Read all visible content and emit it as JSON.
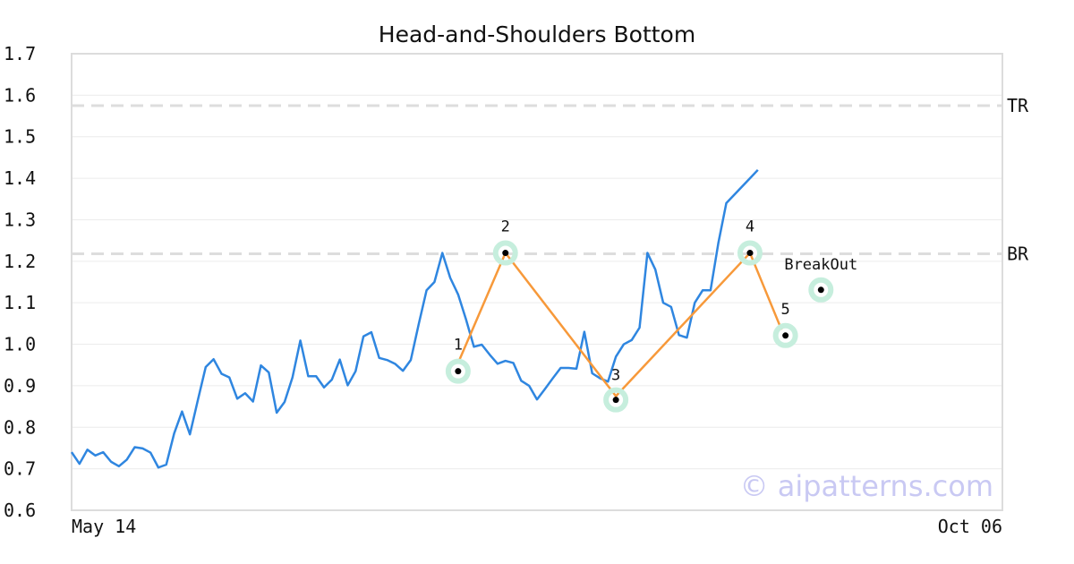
{
  "chart_data": {
    "type": "line",
    "title": "Head-and-Shoulders Bottom",
    "xlabel": "",
    "ylabel": "",
    "ylim": [
      0.6,
      1.7
    ],
    "yticks": [
      "0.6",
      "0.7",
      "0.8",
      "0.9",
      "1.0",
      "1.1",
      "1.2",
      "1.3",
      "1.4",
      "1.5",
      "1.6",
      "1.7"
    ],
    "xlim": [
      0,
      118
    ],
    "xtick_labels": [
      {
        "x": 0,
        "label": "May 14"
      },
      {
        "x": 118,
        "label": "Oct 06"
      }
    ],
    "grid": true,
    "series": [
      {
        "color": "#2f86e0",
        "y": [
          0.74,
          0.712,
          0.746,
          0.732,
          0.74,
          0.717,
          0.706,
          0.722,
          0.752,
          0.749,
          0.739,
          0.703,
          0.71,
          0.785,
          0.838,
          0.783,
          0.865,
          0.945,
          0.964,
          0.929,
          0.92,
          0.869,
          0.882,
          0.862,
          0.949,
          0.932,
          0.835,
          0.861,
          0.92,
          1.009,
          0.923,
          0.923,
          0.896,
          0.915,
          0.963,
          0.901,
          0.935,
          1.019,
          1.029,
          0.967,
          0.962,
          0.953,
          0.936,
          0.962,
          1.048,
          1.13,
          1.15,
          1.22,
          1.16,
          1.12,
          1.06,
          0.994,
          0.999,
          0.975,
          0.953,
          0.96,
          0.955,
          0.912,
          0.9,
          0.867,
          0.892,
          0.918,
          0.943,
          0.943,
          0.941,
          1.03,
          0.93,
          0.918,
          0.91,
          0.97,
          1.0,
          1.01,
          1.04,
          1.22,
          1.18,
          1.1,
          1.09,
          1.022,
          1.016,
          1.1,
          1.13,
          1.13,
          1.245,
          1.34,
          1.36,
          1.38,
          1.4,
          1.42
        ]
      },
      {
        "color": "#f7993a",
        "points": [
          [
            49,
            0.955
          ],
          [
            55,
            1.22
          ],
          [
            69,
            0.875
          ],
          [
            86,
            1.22
          ],
          [
            90,
            1.035
          ]
        ]
      }
    ],
    "pattern_points": [
      {
        "label": "1",
        "x": 49,
        "y": 0.935
      },
      {
        "label": "2",
        "x": 55,
        "y": 1.22
      },
      {
        "label": "3",
        "x": 69,
        "y": 0.866
      },
      {
        "label": "4",
        "x": 86,
        "y": 1.22
      },
      {
        "label": "5",
        "x": 90.5,
        "y": 1.021
      },
      {
        "label": "BreakOut",
        "x": 95,
        "y": 1.131
      }
    ],
    "reference_lines": [
      {
        "label": "TR",
        "y": 1.575,
        "color": "#dddddd"
      },
      {
        "label": "BR",
        "y": 1.218,
        "color": "#dddddd"
      }
    ],
    "watermark": "© aipatterns.com"
  }
}
